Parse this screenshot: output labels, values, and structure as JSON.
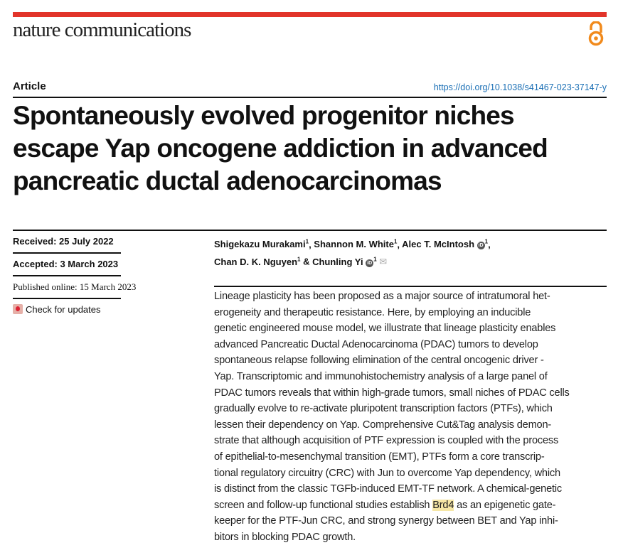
{
  "header": {
    "journal": "nature communications",
    "open_access_icon": "open-access-icon",
    "accent": "#e2342a",
    "oa_color": "#f18a1c"
  },
  "article": {
    "type": "Article",
    "doi": "https://doi.org/10.1038/s41467-023-37147-y",
    "title_lines": [
      "Spontaneously evolved progenitor niches",
      "escape Yap oncogene addiction in advanced",
      "pancreatic ductal adenocarcinomas"
    ]
  },
  "meta": {
    "received": "Received: 25 July 2022",
    "accepted": "Accepted: 3 March 2023",
    "published": "Published online: 15 March 2023",
    "check_updates": "Check for updates"
  },
  "authors": [
    {
      "name": "Shigekazu Murakami",
      "aff": "1",
      "sep": ", "
    },
    {
      "name": "Shannon M. White",
      "aff": "1",
      "sep": ", "
    },
    {
      "name": "Alec T. McIntosh",
      "aff": "1",
      "sep": ","
    },
    {
      "name": "Chan D. K. Nguyen",
      "aff": "1",
      "sep": " & "
    },
    {
      "name": "Chunling Yi",
      "aff": "1",
      "sep": ""
    }
  ],
  "abstract_lines": [
    "Lineage plasticity has been proposed as a major source of intratumoral het-",
    "erogeneity and therapeutic resistance. Here, by employing an inducible",
    "genetic engineered mouse model, we illustrate that lineage plasticity enables",
    "advanced Pancreatic Ductal Adenocarcinoma (PDAC) tumors to develop",
    "spontaneous relapse following elimination of the central oncogenic driver -",
    "Yap. Transcriptomic and immunohistochemistry analysis of a large panel of",
    "PDAC tumors reveals that within high-grade tumors, small niches of PDAC cells",
    "gradually evolve to re-activate pluripotent transcription factors (PTFs), which",
    "lessen their dependency on Yap. Comprehensive Cut&Tag analysis demon-",
    "strate that although acquisition of PTF expression is coupled with the process",
    "of epithelial-to-mesenchymal transition (EMT), PTFs form a core transcrip-",
    "tional regulatory circuitry (CRC) with Jun to overcome Yap dependency, which",
    "is distinct from the classic TGFb-induced EMT-TF network. A chemical-genetic",
    "screen and follow-up functional studies establish ",
    "keeper for the PTF-Jun CRC, and strong synergy between BET and Yap inhi-",
    "bitors in blocking PDAC growth."
  ],
  "abstract_highlight": "Brd4",
  "abstract_line14_tail": " as an epigenetic gate-"
}
